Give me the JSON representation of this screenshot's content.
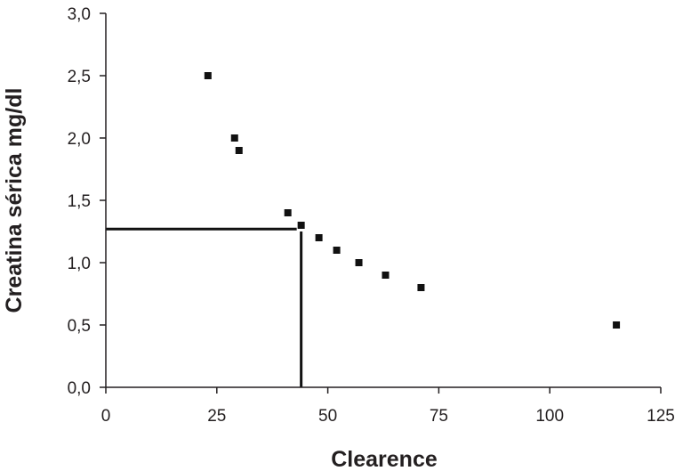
{
  "chart_data": {
    "type": "scatter",
    "title": "",
    "xlabel": "Clearence",
    "ylabel": "Creatina sérica mg/dl",
    "xlim": [
      0,
      125
    ],
    "ylim": [
      0,
      3.0
    ],
    "x_ticks": [
      0,
      25,
      50,
      75,
      100,
      125
    ],
    "x_tick_labels": [
      "0",
      "25",
      "50",
      "75",
      "100",
      "125"
    ],
    "y_ticks": [
      0,
      0.5,
      1.0,
      1.5,
      2.0,
      2.5,
      3.0
    ],
    "y_tick_labels": [
      "0,0",
      "0,5",
      "1,0",
      "1,5",
      "2,0",
      "2,5",
      "3,0"
    ],
    "grid": false,
    "marker": "square",
    "points": [
      {
        "x": 23,
        "y": 2.5
      },
      {
        "x": 29,
        "y": 2.0
      },
      {
        "x": 30,
        "y": 1.9
      },
      {
        "x": 41,
        "y": 1.4
      },
      {
        "x": 44,
        "y": 1.3
      },
      {
        "x": 48,
        "y": 1.2
      },
      {
        "x": 52,
        "y": 1.1
      },
      {
        "x": 57,
        "y": 1.0
      },
      {
        "x": 63,
        "y": 0.9
      },
      {
        "x": 71,
        "y": 0.8
      },
      {
        "x": 115,
        "y": 0.5
      }
    ],
    "reference_lines": [
      {
        "orientation": "horizontal",
        "y": 1.27,
        "x_from": 0,
        "x_to": 43
      },
      {
        "orientation": "vertical",
        "x": 44,
        "y_from": 0,
        "y_to": 1.25
      }
    ],
    "colors": {
      "marker": "#111111",
      "axis": "#231f20",
      "reference": "#111111"
    }
  }
}
